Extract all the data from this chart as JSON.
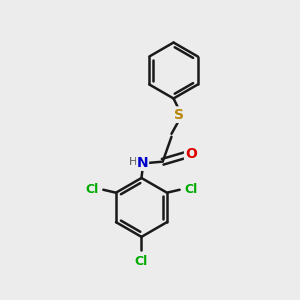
{
  "background_color": "#ececec",
  "bond_color": "#1a1a1a",
  "bond_width": 1.8,
  "S_color": "#b8860b",
  "O_color": "#dd0000",
  "N_color": "#0000cc",
  "Cl_color": "#00aa00",
  "H_color": "#555555",
  "figsize": [
    3.0,
    3.0
  ],
  "dpi": 100,
  "xlim": [
    0,
    10
  ],
  "ylim": [
    0,
    10
  ]
}
